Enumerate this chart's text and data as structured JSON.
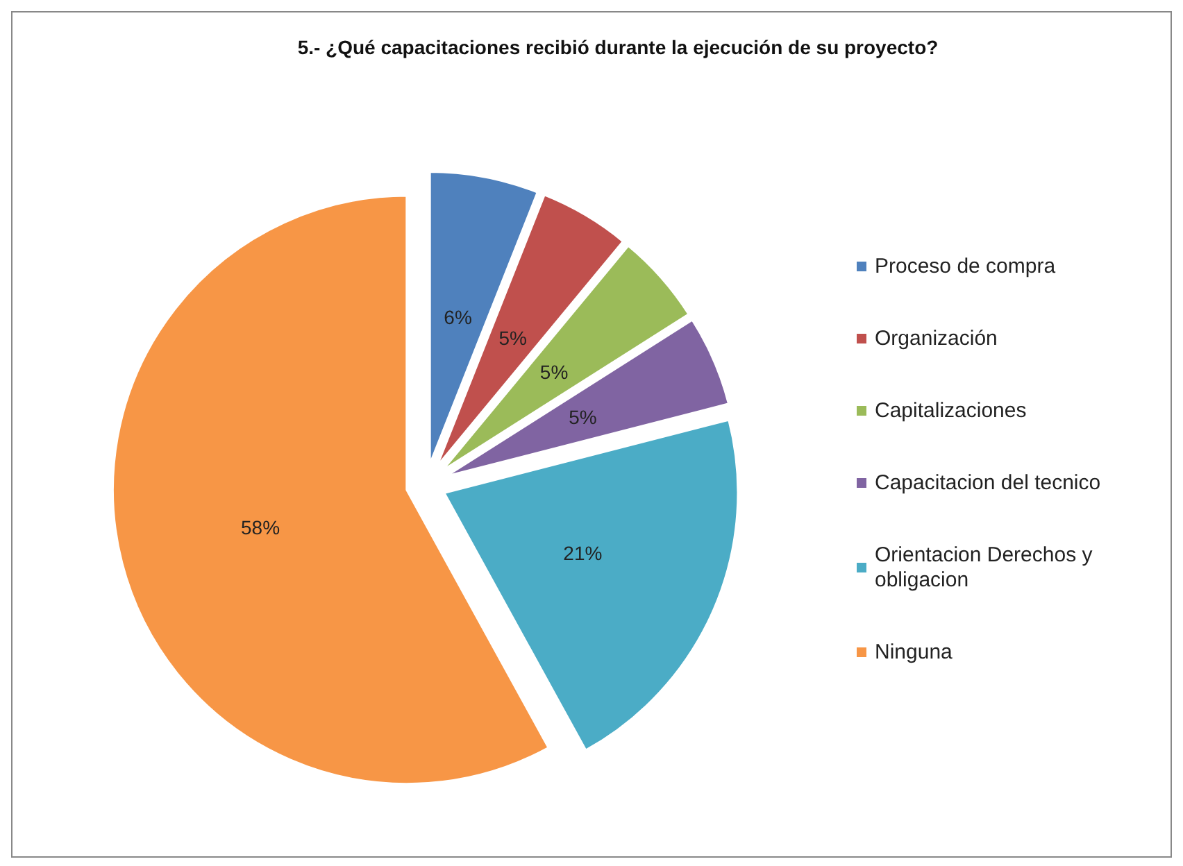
{
  "chart_data": {
    "type": "pie",
    "title": "5.- ¿Qué capacitaciones recibió durante la ejecución de su proyecto?",
    "categories": [
      "Proceso de compra",
      "Organización",
      "Capitalizaciones",
      "Capacitacion del tecnico",
      "Orientacion Derechos y obligacion",
      "Ninguna"
    ],
    "values": [
      6,
      5,
      5,
      5,
      21,
      58
    ],
    "colors": [
      "#4f81bd",
      "#c0504d",
      "#9bbb59",
      "#8064a2",
      "#4bacc6",
      "#f79646"
    ],
    "value_labels": [
      "6%",
      "5%",
      "5%",
      "5%",
      "21%",
      "58%"
    ],
    "legend": "right"
  }
}
